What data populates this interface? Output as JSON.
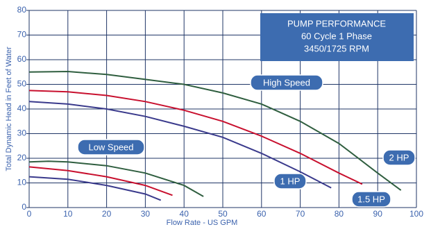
{
  "chart_data": {
    "type": "line",
    "xlabel": "Flow Rate - US GPM",
    "ylabel": "Total Dynamic Head in Feet of Water",
    "xlim": [
      0,
      100
    ],
    "ylim": [
      0,
      80
    ],
    "xticks": [
      0,
      10,
      20,
      30,
      40,
      50,
      60,
      70,
      80,
      90,
      100
    ],
    "yticks": [
      0,
      10,
      20,
      30,
      40,
      50,
      60,
      70,
      80
    ],
    "grid": true,
    "info_box": [
      "PUMP PERFORMANCE",
      "60 Cycle 1 Phase",
      "3450/1725 RPM"
    ],
    "annotations": [
      "High Speed",
      "Low Speed"
    ],
    "series": [
      {
        "name": "2 HP",
        "color": "#2f5e3f",
        "x": [
          0,
          10,
          20,
          30,
          40,
          50,
          60,
          70,
          80,
          90,
          96
        ],
        "values": [
          55,
          55.2,
          54,
          52,
          50,
          46.5,
          42,
          35,
          26,
          14,
          7
        ]
      },
      {
        "name": "1.5 HP",
        "color": "#c8102e",
        "x": [
          0,
          10,
          20,
          30,
          40,
          50,
          60,
          70,
          80,
          86
        ],
        "values": [
          47.5,
          47,
          45.5,
          43,
          39.5,
          35,
          29,
          22,
          14,
          9.5
        ]
      },
      {
        "name": "1 HP",
        "color": "#3a3a8c",
        "x": [
          0,
          10,
          20,
          30,
          40,
          50,
          60,
          70,
          78
        ],
        "values": [
          43,
          42,
          40,
          37,
          33,
          28.5,
          22,
          14.5,
          8
        ]
      },
      {
        "color": "#2f5e3f",
        "x": [
          0,
          5,
          10,
          20,
          30,
          40,
          45
        ],
        "values": [
          18.5,
          18.8,
          18.5,
          17,
          14,
          9,
          4.5
        ]
      },
      {
        "color": "#c8102e",
        "x": [
          0,
          10,
          20,
          30,
          37
        ],
        "values": [
          16.5,
          15,
          12.5,
          9,
          5
        ]
      },
      {
        "color": "#3a3a8c",
        "x": [
          0,
          10,
          20,
          30,
          34
        ],
        "values": [
          12.5,
          11.5,
          9,
          5.5,
          3
        ]
      }
    ]
  }
}
